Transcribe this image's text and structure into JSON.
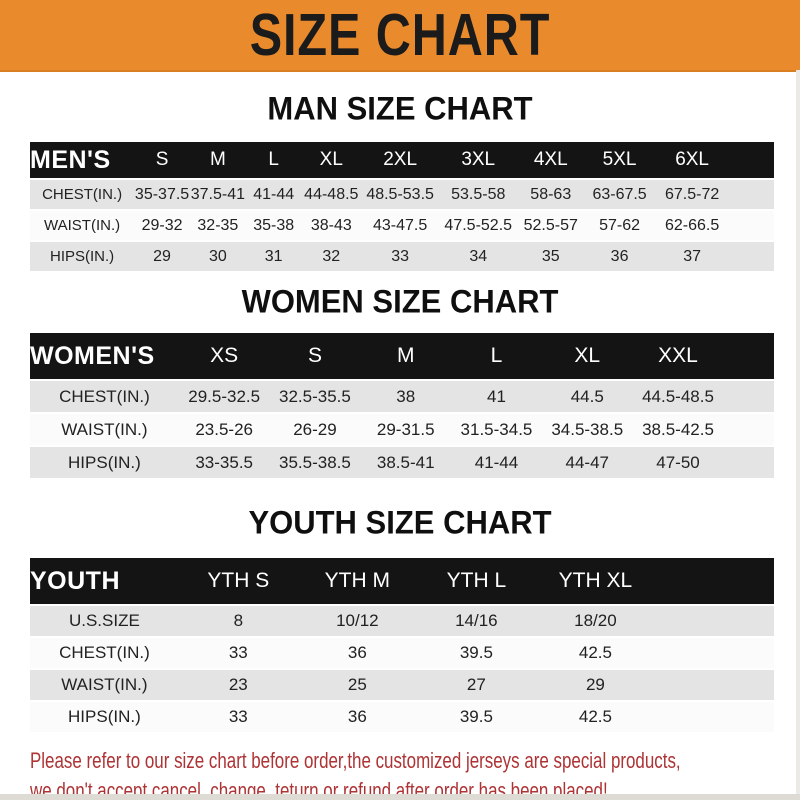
{
  "banner": {
    "title": "SIZE CHART",
    "bg_color": "#e98a2c",
    "text_color": "#1b1b1b"
  },
  "sections": [
    {
      "heading": "MAN SIZE CHART",
      "label": "MEN'S",
      "columns": [
        "S",
        "M",
        "L",
        "XL",
        "2XL",
        "3XL",
        "4XL",
        "5XL",
        "6XL"
      ],
      "rows": [
        {
          "label": "CHEST(IN.)",
          "values": [
            "35-37.5",
            "37.5-41",
            "41-44",
            "44-48.5",
            "48.5-53.5",
            "53.5-58",
            "58-63",
            "63-67.5",
            "67.5-72"
          ]
        },
        {
          "label": "WAIST(IN.)",
          "values": [
            "29-32",
            "32-35",
            "35-38",
            "38-43",
            "43-47.5",
            "47.5-52.5",
            "52.5-57",
            "57-62",
            "62-66.5"
          ]
        },
        {
          "label": "HIPS(IN.)",
          "values": [
            "29",
            "30",
            "31",
            "32",
            "33",
            "34",
            "35",
            "36",
            "37"
          ]
        }
      ]
    },
    {
      "heading": "WOMEN SIZE CHART",
      "label": "WOMEN'S",
      "columns": [
        "XS",
        "S",
        "M",
        "L",
        "XL",
        "XXL"
      ],
      "rows": [
        {
          "label": "CHEST(IN.)",
          "values": [
            "29.5-32.5",
            "32.5-35.5",
            "38",
            "41",
            "44.5",
            "44.5-48.5"
          ]
        },
        {
          "label": "WAIST(IN.)",
          "values": [
            "23.5-26",
            "26-29",
            "29-31.5",
            "31.5-34.5",
            "34.5-38.5",
            "38.5-42.5"
          ]
        },
        {
          "label": "HIPS(IN.)",
          "values": [
            "33-35.5",
            "35.5-38.5",
            "38.5-41",
            "41-44",
            "44-47",
            "47-50"
          ]
        }
      ]
    },
    {
      "heading": "YOUTH SIZE CHART",
      "label": "YOUTH",
      "columns": [
        "YTH S",
        "YTH M",
        "YTH L",
        "YTH XL"
      ],
      "rows": [
        {
          "label": "U.S.SIZE",
          "values": [
            "8",
            "10/12",
            "14/16",
            "18/20"
          ]
        },
        {
          "label": "CHEST(IN.)",
          "values": [
            "33",
            "36",
            "39.5",
            "42.5"
          ]
        },
        {
          "label": "WAIST(IN.)",
          "values": [
            "23",
            "25",
            "27",
            "29"
          ]
        },
        {
          "label": "HIPS(IN.)",
          "values": [
            "33",
            "36",
            "39.5",
            "42.5"
          ]
        }
      ]
    }
  ],
  "footer": {
    "line1": "Please refer to our size chart before order,the customized jerseys are special products,",
    "line2": "we don't accept cancel, change, teturn or refund after order has been placed!",
    "color": "#ae3335"
  }
}
